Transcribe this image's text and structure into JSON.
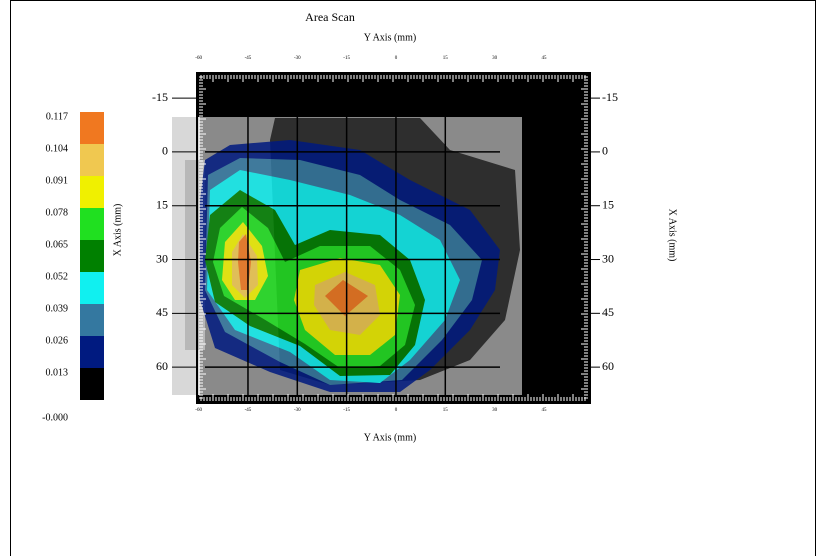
{
  "chart_data": {
    "type": "contour",
    "title": "Area Scan",
    "x_label_top": "Y Axis (mm)",
    "x_label": "Y Axis (mm)",
    "y_label": "X Axis (mm)",
    "y2_label": "X Axis (mm)",
    "xlim": [
      -60.5,
      59
    ],
    "xticks": [
      -60,
      -45,
      -30,
      -15,
      0,
      15,
      30,
      45
    ],
    "ylim": [
      -22,
      70
    ],
    "y_reversed": true,
    "yticks": [
      -15,
      0,
      15,
      30,
      45,
      60
    ],
    "grid": true,
    "levels": [
      {
        "value": 0,
        "label": "-0.000"
      },
      0.013,
      0.026,
      0.039,
      0.052,
      0.065,
      0.078,
      0.091,
      0.104,
      0.117
    ],
    "colors": [
      "#000000",
      "#001a80",
      "#3478a0",
      "#10f0f0",
      "#008000",
      "#20e020",
      "#f0f000",
      "#f0c850",
      "#f07820"
    ]
  }
}
